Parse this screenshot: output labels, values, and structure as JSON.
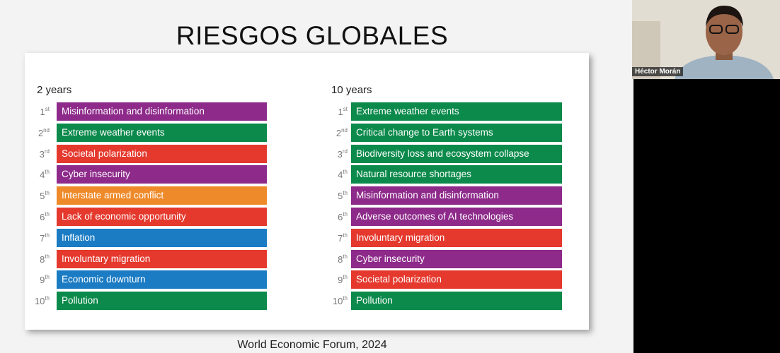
{
  "slide": {
    "title": "RIESGOS GLOBALES",
    "columns": [
      {
        "heading": "2 years",
        "items": [
          {
            "rank": "1",
            "suffix": "st",
            "label": "Misinformation and disinformation",
            "color": "#8d2a8a"
          },
          {
            "rank": "2",
            "suffix": "nd",
            "label": "Extreme weather events",
            "color": "#0b8a4b"
          },
          {
            "rank": "3",
            "suffix": "rd",
            "label": "Societal polarization",
            "color": "#e5392e"
          },
          {
            "rank": "4",
            "suffix": "th",
            "label": "Cyber insecurity",
            "color": "#8d2a8a"
          },
          {
            "rank": "5",
            "suffix": "th",
            "label": "Interstate armed conflict",
            "color": "#ef8a2a"
          },
          {
            "rank": "6",
            "suffix": "th",
            "label": "Lack of economic opportunity",
            "color": "#e5392e"
          },
          {
            "rank": "7",
            "suffix": "th",
            "label": "Inflation",
            "color": "#1b7cc4"
          },
          {
            "rank": "8",
            "suffix": "th",
            "label": "Involuntary migration",
            "color": "#e5392e"
          },
          {
            "rank": "9",
            "suffix": "th",
            "label": "Economic downturn",
            "color": "#1b7cc4"
          },
          {
            "rank": "10",
            "suffix": "th",
            "label": "Pollution",
            "color": "#0b8a4b"
          }
        ]
      },
      {
        "heading": "10 years",
        "items": [
          {
            "rank": "1",
            "suffix": "st",
            "label": "Extreme weather events",
            "color": "#0b8a4b"
          },
          {
            "rank": "2",
            "suffix": "nd",
            "label": "Critical change to Earth systems",
            "color": "#0b8a4b"
          },
          {
            "rank": "3",
            "suffix": "rd",
            "label": "Biodiversity loss and ecosystem collapse",
            "color": "#0b8a4b"
          },
          {
            "rank": "4",
            "suffix": "th",
            "label": "Natural resource shortages",
            "color": "#0b8a4b"
          },
          {
            "rank": "5",
            "suffix": "th",
            "label": "Misinformation and disinformation",
            "color": "#8d2a8a"
          },
          {
            "rank": "6",
            "suffix": "th",
            "label": "Adverse outcomes of AI technologies",
            "color": "#8d2a8a"
          },
          {
            "rank": "7",
            "suffix": "th",
            "label": "Involuntary migration",
            "color": "#e5392e"
          },
          {
            "rank": "8",
            "suffix": "th",
            "label": "Cyber insecurity",
            "color": "#8d2a8a"
          },
          {
            "rank": "9",
            "suffix": "th",
            "label": "Societal polarization",
            "color": "#e5392e"
          },
          {
            "rank": "10",
            "suffix": "th",
            "label": "Pollution",
            "color": "#0b8a4b"
          }
        ]
      }
    ],
    "source": "World Economic Forum, 2024"
  },
  "participant": {
    "name": "Héctor Morán"
  }
}
